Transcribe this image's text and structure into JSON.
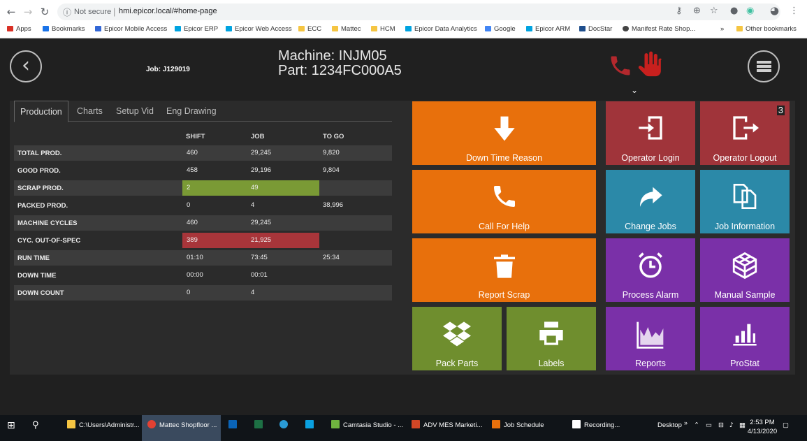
{
  "browser": {
    "not_secure": "Not secure",
    "url": "hmi.epicor.local/#home-page",
    "bookmarks": [
      {
        "label": "Apps",
        "color": "#d93025"
      },
      {
        "label": "Bookmarks",
        "color": "#1a73e8"
      },
      {
        "label": "Epicor Mobile Access",
        "color": "#3367d6"
      },
      {
        "label": "Epicor ERP",
        "color": "#00a3e0"
      },
      {
        "label": "Epicor Web Access",
        "color": "#00a3e0"
      },
      {
        "label": "ECC",
        "color": "#f5c542"
      },
      {
        "label": "Mattec",
        "color": "#f5c542"
      },
      {
        "label": "HCM",
        "color": "#f5c542"
      },
      {
        "label": "Epicor Data Analytics",
        "color": "#00a3e0"
      },
      {
        "label": "Google",
        "color": "#4285f4"
      },
      {
        "label": "Epicor ARM",
        "color": "#00a3e0"
      },
      {
        "label": "DocStar",
        "color": "#1e4e8c"
      },
      {
        "label": "Manifest Rate Shop...",
        "color": "#444444"
      }
    ],
    "more": "»",
    "other_bookmarks": "Other bookmarks"
  },
  "header": {
    "job": "Job: J129019",
    "machine": "Machine: INJM05",
    "part": "Part: 1234FC000A5"
  },
  "tabs": [
    "Production",
    "Charts",
    "Setup Vid",
    "Eng Drawing"
  ],
  "table": {
    "columns": [
      "SHIFT",
      "JOB",
      "TO GO"
    ],
    "rows": [
      {
        "label": "TOTAL PROD.",
        "shift": "460",
        "job": "29,245",
        "togo": "9,820"
      },
      {
        "label": "GOOD PROD.",
        "shift": "458",
        "job": "29,196",
        "togo": "9,804"
      },
      {
        "label": "SCRAP PROD.",
        "shift": "2",
        "job": "49",
        "togo": ""
      },
      {
        "label": "PACKED PROD.",
        "shift": "0",
        "job": "4",
        "togo": "38,996"
      },
      {
        "label": "MACHINE CYCLES",
        "shift": "460",
        "job": "29,245",
        "togo": ""
      },
      {
        "label": "CYC. OUT-OF-SPEC",
        "shift": "389",
        "job": "21,925",
        "togo": ""
      },
      {
        "label": "RUN TIME",
        "shift": "01:10",
        "job": "73:45",
        "togo": "25:34"
      },
      {
        "label": "DOWN TIME",
        "shift": "00:00",
        "job": "00:01",
        "togo": ""
      },
      {
        "label": "DOWN COUNT",
        "shift": "0",
        "job": "4",
        "togo": ""
      }
    ]
  },
  "tiles": {
    "down_time_reason": "Down Time Reason",
    "call_for_help": "Call For Help",
    "report_scrap": "Report Scrap",
    "pack_parts": "Pack Parts",
    "labels": "Labels",
    "operator_login": "Operator Login",
    "operator_logout": "Operator Logout",
    "operator_logout_badge": "3",
    "change_jobs": "Change Jobs",
    "job_information": "Job Information",
    "process_alarm": "Process Alarm",
    "manual_sample": "Manual Sample",
    "reports": "Reports",
    "prostat": "ProStat"
  },
  "taskbar": {
    "explorer": "C:\\Users\\Administr...",
    "chrome": "Mattec Shopfloor ...",
    "camtasia": "Camtasia Studio - ...",
    "powerpoint": "ADV MES Marketi...",
    "job_schedule": "Job Schedule",
    "recording": "Recording...",
    "desktop": "Desktop",
    "time": "2:53 PM",
    "date": "4/13/2020"
  },
  "colors": {
    "orange": "#e8700c",
    "red_tile": "#a0343a",
    "blue_tile": "#2b89a8",
    "purple_tile": "#7a30a8",
    "green_tile": "#6f8e2e",
    "scrap_highlight": "#7a9a35",
    "out_of_spec_highlight": "#a8353a"
  }
}
